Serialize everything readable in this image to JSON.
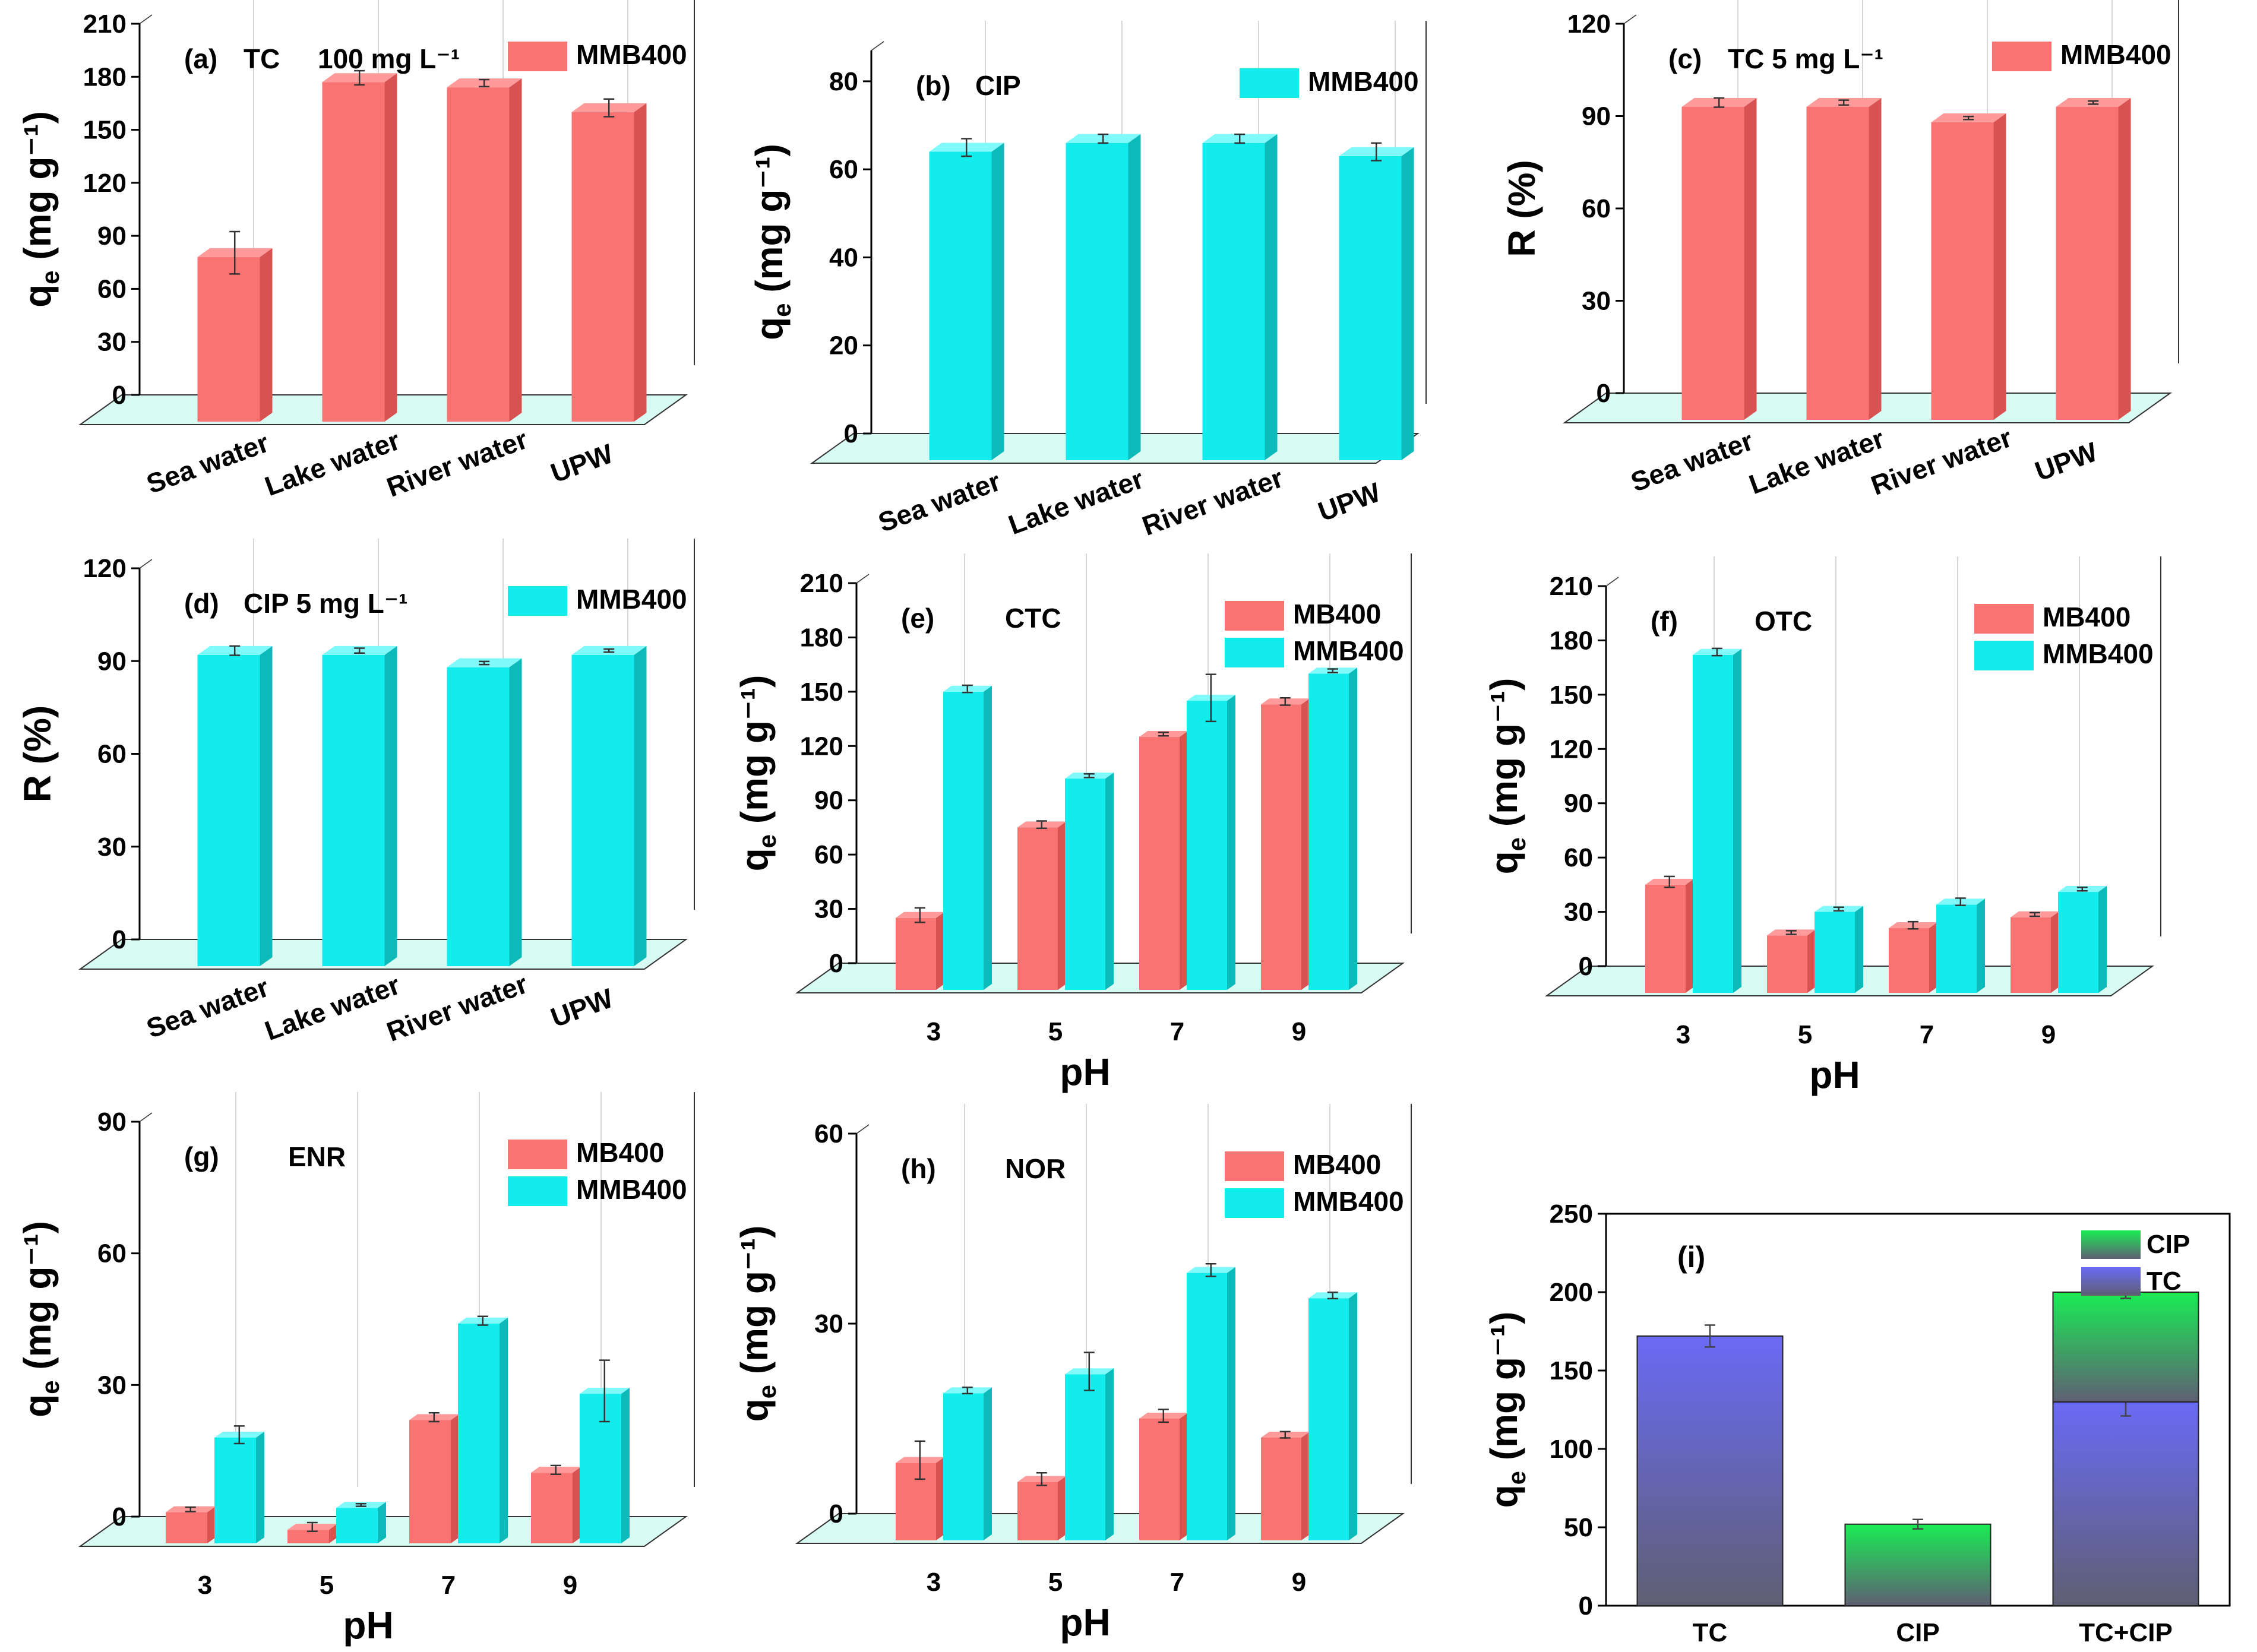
{
  "colors": {
    "mb400": "#fa7373",
    "mb400_side": "#d95252",
    "mb400_top": "#ff9a9a",
    "mmb400": "#12ecec",
    "mmb400_side": "#0cbaba",
    "mmb400_top": "#7ff9f9",
    "floor": "#d8fcf3",
    "tc_stack": "#6a6af5",
    "cip_stack": "#19ec54",
    "stack_bottom": "#5f5f73"
  },
  "chart_data": [
    {
      "id": "a",
      "type": "bar",
      "tag": "(a)",
      "annotation": "TC",
      "annotation2": "100 mg L⁻¹",
      "ylabel_main": "q",
      "ylabel_sub": "e",
      "ylabel_unit": "(mg g⁻¹)",
      "ylim": [
        0,
        210
      ],
      "yticks": [
        "0",
        "30",
        "60",
        "90",
        "120",
        "150",
        "180",
        "210"
      ],
      "categories": [
        "Sea water",
        "Lake water",
        "River water",
        "UPW"
      ],
      "rotate_labels": true,
      "series": [
        {
          "name": "MMB400",
          "color_key": "mb400",
          "values": [
            78,
            177,
            174,
            160
          ],
          "errors": [
            12,
            4,
            2,
            5
          ]
        }
      ]
    },
    {
      "id": "b",
      "type": "bar",
      "tag": "(b)",
      "annotation": "CIP",
      "annotation2": "",
      "ylabel_main": "q",
      "ylabel_sub": "e",
      "ylabel_unit": "(mg g⁻¹)",
      "ylim": [
        0,
        87
      ],
      "yticks": [
        "0",
        "20",
        "40",
        "60",
        "80"
      ],
      "categories": [
        "Sea water",
        "Lake water",
        "River water",
        "UPW"
      ],
      "rotate_labels": true,
      "series": [
        {
          "name": "MMB400",
          "color_key": "mmb400",
          "values": [
            64,
            66,
            66,
            63
          ],
          "errors": [
            2,
            1,
            1,
            2
          ]
        }
      ]
    },
    {
      "id": "c",
      "type": "bar",
      "tag": "(c)",
      "annotation": "TC 5 mg L⁻¹",
      "annotation2": "",
      "ylabel_main": "R (%)",
      "ylabel_sub": "",
      "ylabel_unit": "",
      "ylim": [
        0,
        120
      ],
      "yticks": [
        "0",
        "30",
        "60",
        "90",
        "120"
      ],
      "categories": [
        "Sea water",
        "Lake water",
        "River water",
        "UPW"
      ],
      "rotate_labels": true,
      "series": [
        {
          "name": "MMB400",
          "color_key": "mb400",
          "values": [
            93,
            93,
            88,
            93
          ],
          "errors": [
            1.5,
            0.8,
            0.5,
            0.5
          ]
        }
      ]
    },
    {
      "id": "d",
      "type": "bar",
      "tag": "(d)",
      "annotation": "CIP 5 mg L⁻¹",
      "annotation2": "",
      "ylabel_main": "R (%)",
      "ylabel_sub": "",
      "ylabel_unit": "",
      "ylim": [
        0,
        120
      ],
      "yticks": [
        "0",
        "30",
        "60",
        "90",
        "120"
      ],
      "categories": [
        "Sea water",
        "Lake water",
        "River water",
        "UPW"
      ],
      "rotate_labels": true,
      "series": [
        {
          "name": "MMB400",
          "color_key": "mmb400",
          "values": [
            92,
            92,
            88,
            92
          ],
          "errors": [
            1.5,
            0.8,
            0.5,
            0.5
          ]
        }
      ]
    },
    {
      "id": "e",
      "type": "bar",
      "tag": "(e)",
      "annotation": "CTC",
      "annotation2": "",
      "ylabel_main": "q",
      "ylabel_sub": "e",
      "ylabel_unit": "(mg g⁻¹)",
      "xlabel": "pH",
      "ylim": [
        0,
        210
      ],
      "yticks": [
        "0",
        "30",
        "60",
        "90",
        "120",
        "150",
        "180",
        "210"
      ],
      "categories": [
        "3",
        "5",
        "7",
        "9"
      ],
      "rotate_labels": false,
      "series": [
        {
          "name": "MB400",
          "color_key": "mb400",
          "values": [
            25,
            75,
            125,
            143
          ],
          "errors": [
            4,
            2,
            1,
            2
          ]
        },
        {
          "name": "MMB400",
          "color_key": "mmb400",
          "values": [
            150,
            102,
            145,
            160
          ],
          "errors": [
            2,
            1,
            13,
            1
          ]
        }
      ]
    },
    {
      "id": "f",
      "type": "bar",
      "tag": "(f)",
      "annotation": "OTC",
      "annotation2": "",
      "ylabel_main": "q",
      "ylabel_sub": "e",
      "ylabel_unit": "(mg g⁻¹)",
      "xlabel": "pH",
      "ylim": [
        0,
        210
      ],
      "yticks": [
        "0",
        "30",
        "60",
        "90",
        "120",
        "150",
        "180",
        "210"
      ],
      "categories": [
        "3",
        "5",
        "7",
        "9"
      ],
      "rotate_labels": false,
      "series": [
        {
          "name": "MB400",
          "color_key": "mb400",
          "values": [
            45,
            17,
            21,
            27
          ],
          "errors": [
            3,
            1,
            2,
            1
          ]
        },
        {
          "name": "MMB400",
          "color_key": "mmb400",
          "values": [
            172,
            30,
            34,
            41
          ],
          "errors": [
            2,
            1,
            2,
            1
          ]
        }
      ]
    },
    {
      "id": "g",
      "type": "bar",
      "tag": "(g)",
      "annotation": "ENR",
      "annotation2": "",
      "ylabel_main": "q",
      "ylabel_sub": "e",
      "ylabel_unit": "(mg g⁻¹)",
      "xlabel": "pH",
      "ylim": [
        0,
        90
      ],
      "yticks": [
        "0",
        "30",
        "60",
        "90"
      ],
      "categories": [
        "3",
        "5",
        "7",
        "9"
      ],
      "rotate_labels": false,
      "series": [
        {
          "name": "MB400",
          "color_key": "mb400",
          "values": [
            1,
            -3,
            22,
            10
          ],
          "errors": [
            0.5,
            1,
            1,
            1
          ]
        },
        {
          "name": "MMB400",
          "color_key": "mmb400",
          "values": [
            18,
            2,
            44,
            28
          ],
          "errors": [
            2,
            0.3,
            1,
            7
          ]
        }
      ]
    },
    {
      "id": "h",
      "type": "bar",
      "tag": "(h)",
      "annotation": "NOR",
      "annotation2": "",
      "ylabel_main": "q",
      "ylabel_sub": "e",
      "ylabel_unit": "(mg g⁻¹)",
      "xlabel": "pH",
      "ylim": [
        0,
        60
      ],
      "yticks": [
        "0",
        "30",
        "60"
      ],
      "categories": [
        "3",
        "5",
        "7",
        "9"
      ],
      "rotate_labels": false,
      "series": [
        {
          "name": "MB400",
          "color_key": "mb400",
          "values": [
            8,
            5,
            15,
            12
          ],
          "errors": [
            3,
            1,
            1,
            0.5
          ]
        },
        {
          "name": "MMB400",
          "color_key": "mmb400",
          "values": [
            19,
            22,
            38,
            34
          ],
          "errors": [
            0.5,
            3,
            1,
            0.5
          ]
        }
      ]
    },
    {
      "id": "i",
      "type": "bar",
      "stacked": true,
      "tag": "(i)",
      "ylabel_main": "q",
      "ylabel_sub": "e",
      "ylabel_unit": "(mg g⁻¹)",
      "ylim": [
        0,
        250
      ],
      "yticks": [
        "0",
        "50",
        "100",
        "150",
        "200",
        "250"
      ],
      "categories": [
        "TC",
        "CIP",
        "TC+CIP"
      ],
      "series": [
        {
          "name": "TC",
          "color_key": "tc_stack",
          "values": [
            172,
            0,
            130
          ],
          "errors": [
            7,
            0,
            9
          ]
        },
        {
          "name": "CIP",
          "color_key": "cip_stack",
          "values": [
            0,
            52,
            70
          ],
          "errors": [
            0,
            3,
            4
          ]
        }
      ]
    }
  ]
}
